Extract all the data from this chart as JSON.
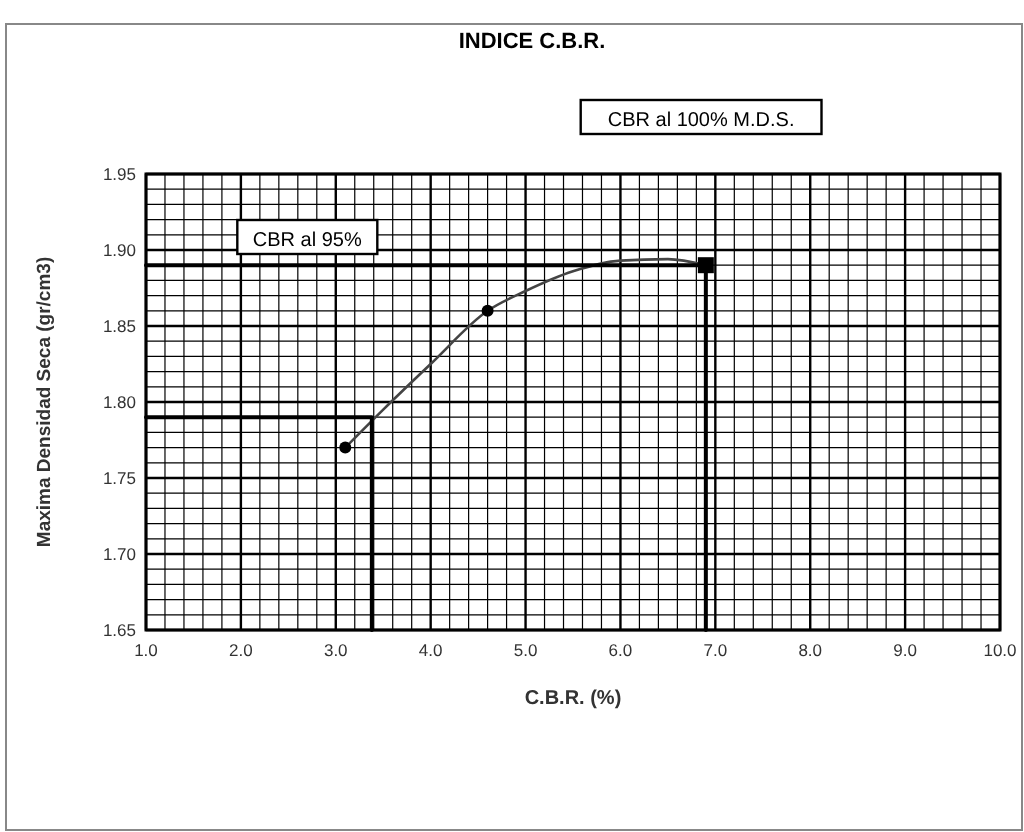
{
  "chart_data": {
    "type": "line",
    "title": "INDICE C.B.R.",
    "xlabel": "C.B.R. (%)",
    "ylabel": "Maxima Densidad Seca (gr/cm3)",
    "annotations": [
      "CBR al 100%  M.D.S.",
      "CBR al 95%"
    ],
    "xlim": [
      1,
      10
    ],
    "ylim": [
      1.65,
      1.95
    ],
    "xticks": [
      {
        "value": 1,
        "label": "1.0"
      },
      {
        "value": 1.2,
        "label": null
      },
      {
        "value": 1.4,
        "label": null
      },
      {
        "value": 1.6,
        "label": null
      },
      {
        "value": 1.8,
        "label": null
      },
      {
        "value": 2,
        "label": "2.0"
      },
      {
        "value": 2.2,
        "label": null
      },
      {
        "value": 2.4,
        "label": null
      },
      {
        "value": 2.6,
        "label": null
      },
      {
        "value": 2.8,
        "label": null
      },
      {
        "value": 3,
        "label": "3.0"
      },
      {
        "value": 3.2,
        "label": null
      },
      {
        "value": 3.4,
        "label": null
      },
      {
        "value": 3.6,
        "label": null
      },
      {
        "value": 3.8,
        "label": null
      },
      {
        "value": 4,
        "label": "4.0"
      },
      {
        "value": 4.2,
        "label": null
      },
      {
        "value": 4.4,
        "label": null
      },
      {
        "value": 4.6,
        "label": null
      },
      {
        "value": 4.8,
        "label": null
      },
      {
        "value": 5,
        "label": "5.0"
      },
      {
        "value": 5.2,
        "label": null
      },
      {
        "value": 5.4,
        "label": null
      },
      {
        "value": 5.6,
        "label": null
      },
      {
        "value": 5.8,
        "label": null
      },
      {
        "value": 6,
        "label": "6.0"
      },
      {
        "value": 6.2,
        "label": null
      },
      {
        "value": 6.4,
        "label": null
      },
      {
        "value": 6.6,
        "label": null
      },
      {
        "value": 6.8,
        "label": null
      },
      {
        "value": 7,
        "label": "7.0"
      },
      {
        "value": 7.2,
        "label": null
      },
      {
        "value": 7.4,
        "label": null
      },
      {
        "value": 7.6,
        "label": null
      },
      {
        "value": 7.8,
        "label": null
      },
      {
        "value": 8,
        "label": "8.0"
      },
      {
        "value": 8.2,
        "label": null
      },
      {
        "value": 8.4,
        "label": null
      },
      {
        "value": 8.6,
        "label": null
      },
      {
        "value": 8.8,
        "label": null
      },
      {
        "value": 9,
        "label": "9.0"
      },
      {
        "value": 9.2,
        "label": null
      },
      {
        "value": 9.4,
        "label": null
      },
      {
        "value": 9.6,
        "label": null
      },
      {
        "value": 9.8,
        "label": null
      },
      {
        "value": 10,
        "label": "10.0"
      }
    ],
    "yticks": [
      1.65,
      {
        "value": 1.66,
        "label": null
      },
      {
        "value": 1.67,
        "label": null
      },
      {
        "value": 1.68,
        "label": null
      },
      {
        "value": 1.69,
        "label": null
      },
      {
        "value": 1.7,
        "label": "1.70"
      },
      {
        "value": 1.71,
        "label": null
      },
      {
        "value": 1.72,
        "label": null
      },
      {
        "value": 1.73,
        "label": null
      },
      {
        "value": 1.74,
        "label": null
      },
      1.75,
      {
        "value": 1.76,
        "label": null
      },
      {
        "value": 1.77,
        "label": null
      },
      {
        "value": 1.78,
        "label": null
      },
      {
        "value": 1.79,
        "label": null
      },
      {
        "value": 1.8,
        "label": "1.80"
      },
      {
        "value": 1.81,
        "label": null
      },
      {
        "value": 1.82,
        "label": null
      },
      {
        "value": 1.83,
        "label": null
      },
      {
        "value": 1.84,
        "label": null
      },
      1.85,
      {
        "value": 1.86,
        "label": null
      },
      {
        "value": 1.87,
        "label": null
      },
      {
        "value": 1.88,
        "label": null
      },
      {
        "value": 1.89,
        "label": null
      },
      {
        "value": 1.9,
        "label": "1.90"
      },
      {
        "value": 1.91,
        "label": null
      },
      {
        "value": 1.92,
        "label": null
      },
      {
        "value": 1.93,
        "label": null
      },
      {
        "value": 1.94,
        "label": null
      },
      1.95
    ],
    "grid": true,
    "series": [
      {
        "color": "#444444",
        "marker": "none",
        "x": [
          3.1,
          3.5,
          4.0,
          4.6,
          5.0,
          5.5,
          6.0,
          6.5,
          6.9
        ],
        "values": [
          1.77,
          1.795,
          1.825,
          1.86,
          1.873,
          1.886,
          1.893,
          1.894,
          1.89
        ]
      },
      {
        "type": "scatter",
        "color": "#000000",
        "marker": "circle",
        "x": [
          3.1,
          4.6
        ],
        "values": [
          1.77,
          1.86
        ]
      },
      {
        "type": "scatter",
        "color": "#000000",
        "marker": "square",
        "x": [
          6.9
        ],
        "values": [
          1.89
        ]
      },
      {
        "color": "#000000",
        "marker": "none",
        "x": [
          1,
          6.9,
          6.9
        ],
        "values": [
          1.89,
          1.89,
          1.65
        ]
      },
      {
        "color": "#000000",
        "marker": "none",
        "x": [
          1,
          3.38,
          3.38
        ],
        "values": [
          1.79,
          1.79,
          1.65
        ]
      }
    ]
  }
}
